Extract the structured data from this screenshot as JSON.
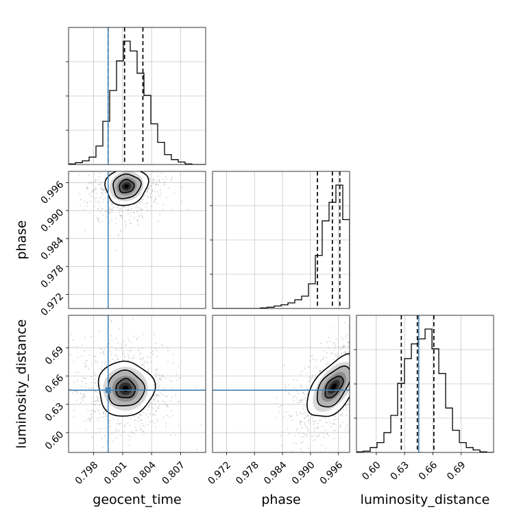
{
  "chart_data": {
    "type": "corner",
    "parameters": [
      "geocent_time",
      "phase",
      "luminosity_distance"
    ],
    "ranges": {
      "geocent_time": [
        0.7954,
        0.8096
      ],
      "phase": [
        0.969,
        0.9984
      ],
      "luminosity_distance": [
        0.579,
        0.7243
      ]
    },
    "ticks": {
      "geocent_time": [
        0.798,
        0.801,
        0.804,
        0.807
      ],
      "phase": [
        0.972,
        0.978,
        0.984,
        0.99,
        0.996
      ],
      "luminosity_distance": [
        0.6,
        0.63,
        0.66,
        0.69
      ]
    },
    "tick_labels": {
      "geocent_time": [
        "0.798",
        "0.801",
        "0.804",
        "0.807"
      ],
      "phase": [
        "0.972",
        "0.978",
        "0.984",
        "0.990",
        "0.996"
      ],
      "luminosity_distance": [
        "0.60",
        "0.63",
        "0.66",
        "0.69"
      ]
    },
    "truths": {
      "geocent_time": 0.7995,
      "luminosity_distance": 0.645
    },
    "truth_color": "#4682b4",
    "quantiles": {
      "geocent_time": [
        0.7995,
        0.8012,
        0.8031
      ],
      "phase": [
        0.9915,
        0.9947,
        0.9963
      ],
      "luminosity_distance": [
        0.6265,
        0.6435,
        0.661
      ]
    },
    "histograms": {
      "geocent_time": {
        "edges_start": 0.7954,
        "bin_width": 0.00071,
        "counts": [
          0.5,
          1.5,
          3,
          6,
          15,
          35,
          60,
          84,
          100,
          92,
          74,
          56,
          33,
          18,
          8,
          4,
          2,
          0.5,
          0,
          0
        ]
      },
      "phase": {
        "edges_start": 0.969,
        "bin_width": 0.00147,
        "counts": [
          0,
          0,
          0,
          0,
          0,
          0,
          0,
          0.5,
          1,
          2,
          3,
          4.5,
          7,
          10,
          20,
          43,
          71,
          86,
          100,
          72
        ]
      },
      "luminosity_distance": {
        "edges_start": 0.579,
        "bin_width": 0.00727,
        "counts": [
          0.5,
          1,
          4,
          8,
          16,
          30,
          56,
          76,
          88,
          92,
          100,
          84,
          64,
          36,
          18,
          8,
          4,
          2,
          0.5,
          0
        ]
      }
    },
    "pairs": [
      {
        "x": "geocent_time",
        "y": "phase",
        "center": [
          0.8014,
          0.9952
        ],
        "sigma": [
          0.0011,
          0.002
        ],
        "rho": 0.1,
        "contour_levels": [
          0.7,
          1.3,
          2.0
        ],
        "cov_scale": [
          1.0,
          1.0
        ]
      },
      {
        "x": "geocent_time",
        "y": "luminosity_distance",
        "center": [
          0.8013,
          0.6465
        ],
        "sigma": [
          0.00145,
          0.0145
        ],
        "rho": 0.0,
        "contour_levels": [
          0.7,
          1.3,
          2.0
        ],
        "cov_scale": [
          1.0,
          1.0
        ]
      },
      {
        "x": "phase",
        "y": "luminosity_distance",
        "center": [
          0.995,
          0.6485
        ],
        "sigma": [
          0.0028,
          0.0165
        ],
        "rho": 0.55,
        "contour_levels": [
          0.7,
          1.3,
          2.0
        ],
        "cov_scale": [
          1.0,
          1.0
        ]
      }
    ],
    "grid": true,
    "colors": {
      "contour": "#000000",
      "density": "#000000",
      "scatter": "#999999",
      "grid": "#b0b0b0"
    }
  }
}
